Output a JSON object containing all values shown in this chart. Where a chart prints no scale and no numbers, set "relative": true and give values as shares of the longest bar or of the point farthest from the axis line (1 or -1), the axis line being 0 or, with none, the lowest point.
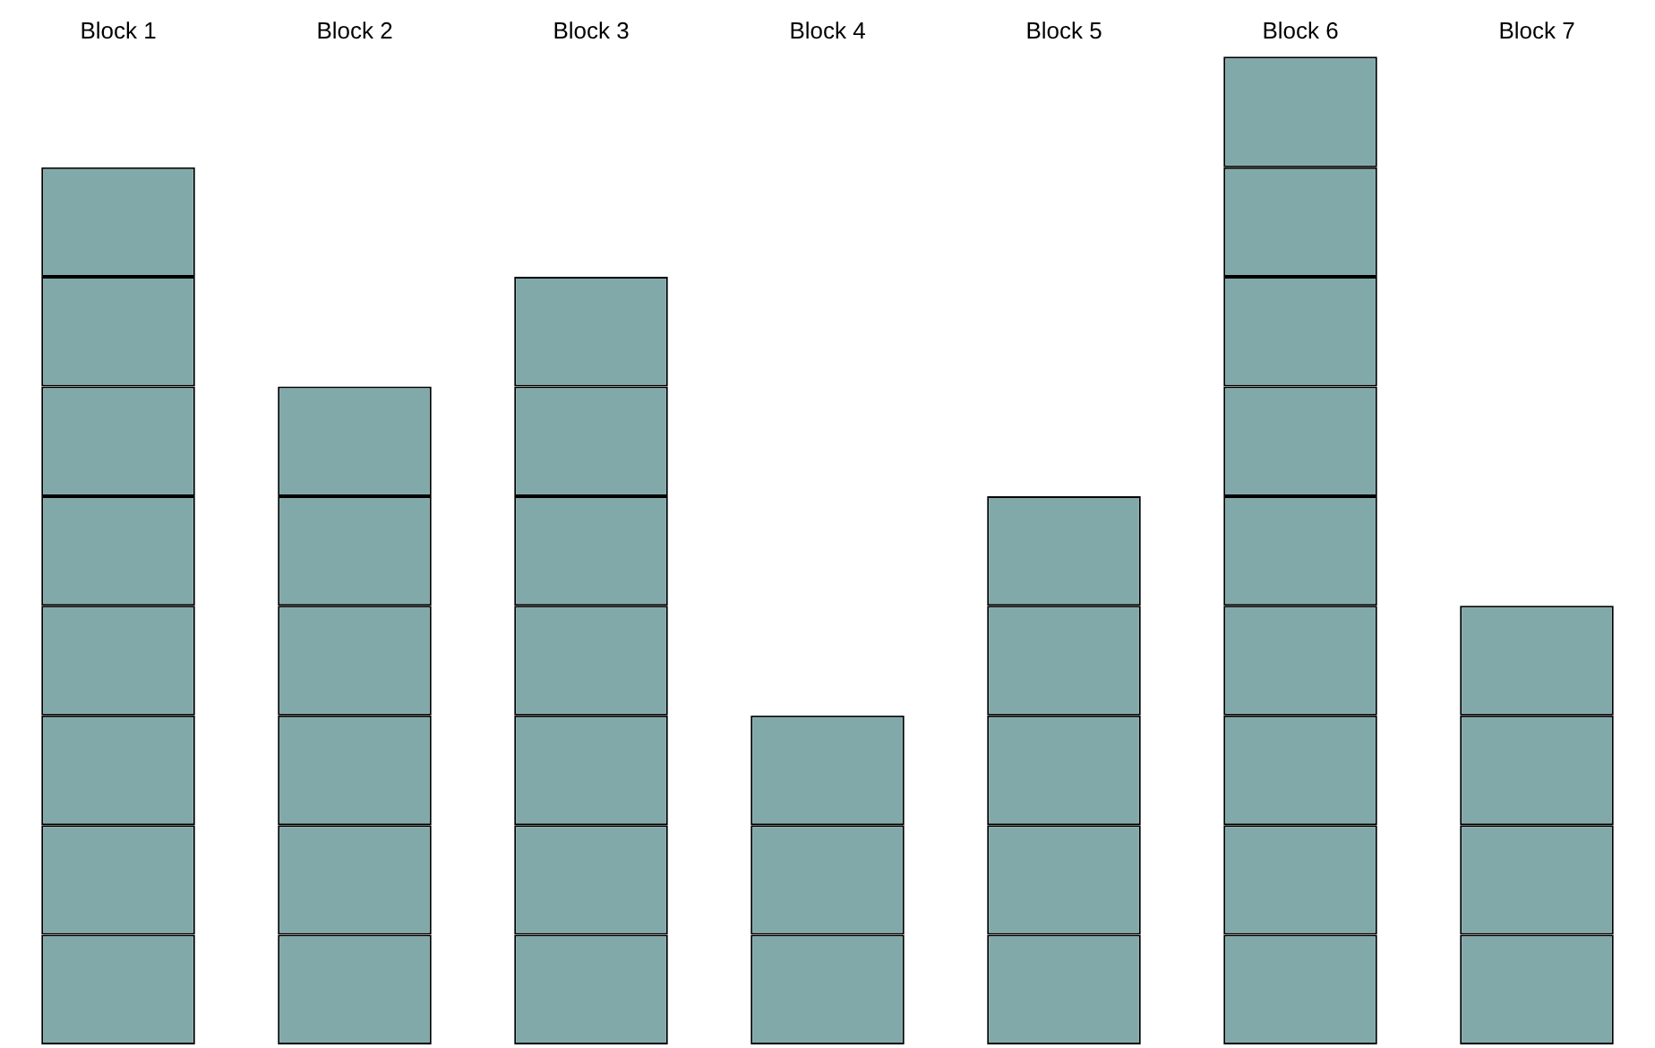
{
  "chart_data": {
    "type": "bar",
    "stacked": true,
    "relative": true,
    "categories": [
      "Block 1",
      "Block 2",
      "Block 3",
      "Block 4",
      "Block 5",
      "Block 6",
      "Block 7"
    ],
    "series": [
      {
        "color": "#82a9aa",
        "values": [
          0.111,
          0.111,
          0.111,
          0.111,
          0.111,
          0.111,
          0.111
        ]
      },
      {
        "color": "#82a9aa",
        "values": [
          0.111,
          0.111,
          0.111,
          0.111,
          0.111,
          0.111,
          0.111
        ]
      },
      {
        "color": "#82a9aa",
        "values": [
          0.111,
          0.111,
          0.111,
          0.111,
          0.111,
          0.111,
          0.111
        ]
      },
      {
        "color": "#82a9aa",
        "values": [
          0.111,
          0.111,
          0.111,
          null,
          0.111,
          0.111,
          0.111
        ]
      },
      {
        "color": "#82a9aa",
        "values": [
          0.111,
          0.111,
          0.111,
          null,
          0.111,
          0.111,
          null
        ]
      },
      {
        "color": "#82a9aa",
        "values": [
          0.111,
          0.111,
          0.111,
          null,
          null,
          0.111,
          null
        ]
      },
      {
        "color": "#82a9aa",
        "values": [
          0.111,
          null,
          0.111,
          null,
          null,
          0.111,
          null
        ]
      },
      {
        "color": "#82a9aa",
        "values": [
          0.111,
          null,
          null,
          null,
          null,
          0.111,
          null
        ]
      },
      {
        "color": "#82a9aa",
        "values": [
          null,
          null,
          null,
          null,
          null,
          0.112,
          null
        ]
      }
    ],
    "grid": false,
    "legend": false
  }
}
